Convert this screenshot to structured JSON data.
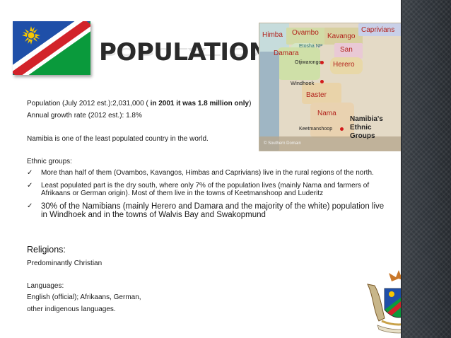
{
  "title": "POPULATION",
  "population_line": {
    "prefix": "Population (July 2012 est.):2,031,000 ( ",
    "bold": "in 2001 it was 1.8 million only",
    "suffix": ")"
  },
  "growth_line": "Annual growth rate (2012 est.): 1.8%",
  "least_populated_line": "Namibia is one of the least populated country in the world.",
  "ethnic_heading": "Ethnic groups:",
  "ethnic_bullets": [
    "More than half of them (Ovambos, Kavangos, Himbas and Caprivians) live in the rural regions of the north.",
    "Least populated part is the dry south, where only 7% of the population lives (mainly Nama and farmers of Afrikaans or German origin). Most of them live in the towns of Keetmanshoop and Luderitz",
    "30% of the Namibians (mainly Herero and Damara and the majority of the white) population live in Windhoek and in the towns of Walvis Bay and Swakopmund"
  ],
  "religions_heading": "Religions:",
  "religions_text": "Predominantly Christian",
  "languages_heading": "Languages:",
  "languages_line1": "English (official); Afrikaans, German,",
  "languages_line2": "other indigenous languages.",
  "map": {
    "labels": {
      "himba": "Himba",
      "ovambo": "Ovambo",
      "kavango": "Kavango",
      "caprivians": "Caprivians",
      "etosha": "Etosha NP",
      "san": "San",
      "damara": "Damara",
      "otjiwarongo": "Otjiwarongo",
      "herero": "Herero",
      "windhoek": "Windhoek",
      "baster": "Baster",
      "nama": "Nama",
      "keetmanshoop": "Keetmanshoop"
    },
    "legend": [
      "Namibia's",
      "Ethnic",
      "Groups"
    ],
    "credit": "© Southern Domain"
  },
  "colors": {
    "flag_blue": "#1f4fa8",
    "flag_red": "#d2232a",
    "flag_green": "#0a9a3c",
    "flag_sun": "#f7c600",
    "dark_bar": "#2d3238"
  }
}
